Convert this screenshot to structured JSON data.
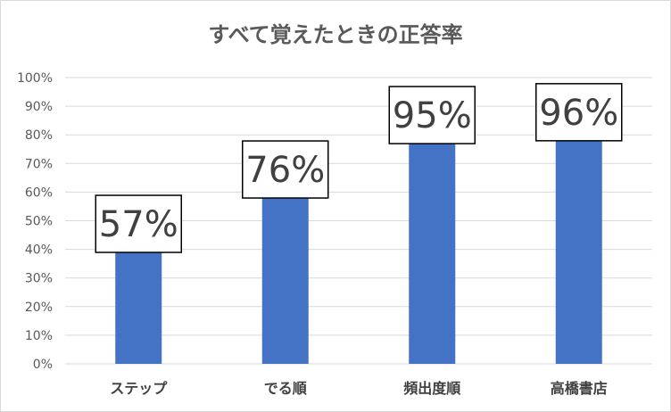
{
  "chart_data": {
    "type": "bar",
    "title": "すべて覚えたときの正答率",
    "categories": [
      "ステップ",
      "でる順",
      "頻出度順",
      "高橋書店"
    ],
    "values": [
      57,
      76,
      95,
      96
    ],
    "data_labels": [
      "57%",
      "76%",
      "95%",
      "96%"
    ],
    "ylim": [
      0,
      100
    ],
    "yticks": [
      0,
      10,
      20,
      30,
      40,
      50,
      60,
      70,
      80,
      90,
      100
    ],
    "ytick_labels": [
      "0%",
      "10%",
      "20%",
      "30%",
      "40%",
      "50%",
      "60%",
      "70%",
      "80%",
      "90%",
      "100%"
    ],
    "grid": true,
    "legend": "none",
    "bar_color": "#4472c4",
    "grid_color": "#d9d9d9",
    "xlabel": "",
    "ylabel": ""
  }
}
